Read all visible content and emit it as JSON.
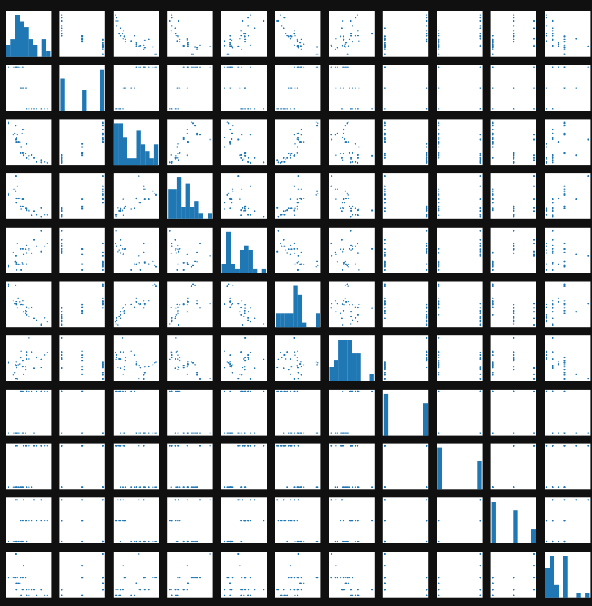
{
  "figure": {
    "background": "#101010",
    "panel_color": "#ffffff",
    "mark_color": "#1f77b4"
  },
  "chart_data": {
    "type": "scatter_matrix",
    "n_vars": 11,
    "diag_type": "histogram",
    "axes_visible": false,
    "variables": [
      {
        "range": [
          10,
          35
        ],
        "values": [
          21,
          21,
          22.8,
          21.4,
          18.7,
          18.1,
          14.3,
          24.4,
          22.8,
          19.2,
          17.8,
          16.4,
          17.3,
          15.2,
          10.4,
          10.4,
          14.7,
          32.4,
          30.4,
          33.9,
          21.5,
          15.5,
          15.2,
          13.3,
          19.2,
          27.3,
          26,
          30.4,
          15.8,
          19.7,
          15,
          21.4
        ]
      },
      {
        "range": [
          4,
          8
        ],
        "values": [
          6,
          6,
          4,
          6,
          8,
          6,
          8,
          4,
          4,
          6,
          6,
          8,
          8,
          8,
          8,
          8,
          8,
          4,
          4,
          4,
          4,
          8,
          8,
          8,
          8,
          4,
          4,
          4,
          8,
          6,
          8,
          4
        ]
      },
      {
        "range": [
          70,
          480
        ],
        "values": [
          160,
          160,
          108,
          258,
          360,
          225,
          360,
          146.7,
          140.8,
          167.6,
          167.6,
          275.8,
          275.8,
          275.8,
          472,
          460,
          440,
          78.7,
          75.7,
          71.1,
          120.1,
          318,
          304,
          350,
          400,
          79,
          120.3,
          95.1,
          351,
          145,
          301,
          121
        ]
      },
      {
        "range": [
          50,
          340
        ],
        "values": [
          110,
          110,
          93,
          110,
          175,
          105,
          245,
          62,
          95,
          123,
          123,
          180,
          180,
          180,
          205,
          215,
          230,
          66,
          52,
          65,
          97,
          150,
          150,
          245,
          175,
          66,
          91,
          113,
          264,
          175,
          335,
          109
        ]
      },
      {
        "range": [
          2.7,
          5.0
        ],
        "values": [
          3.9,
          3.9,
          3.85,
          3.08,
          3.15,
          2.76,
          3.21,
          3.69,
          3.92,
          3.92,
          3.92,
          3.07,
          3.07,
          3.07,
          2.93,
          3,
          3.23,
          4.08,
          4.93,
          4.22,
          3.7,
          2.76,
          3.15,
          3.73,
          3.08,
          4.08,
          4.43,
          3.77,
          4.22,
          3.62,
          3.54,
          4.11
        ]
      },
      {
        "range": [
          1.5,
          5.5
        ],
        "values": [
          2.62,
          2.875,
          2.32,
          3.215,
          3.44,
          3.46,
          3.57,
          3.19,
          3.15,
          3.44,
          3.44,
          4.07,
          3.73,
          3.78,
          5.25,
          5.424,
          5.345,
          2.2,
          1.615,
          1.835,
          2.465,
          3.52,
          3.435,
          3.84,
          3.845,
          1.935,
          2.14,
          1.513,
          3.17,
          2.77,
          3.57,
          2.78
        ]
      },
      {
        "range": [
          14.5,
          23
        ],
        "values": [
          16.46,
          17.02,
          18.61,
          19.44,
          17.02,
          20.22,
          15.84,
          20,
          22.9,
          18.3,
          18.9,
          17.4,
          17.6,
          18,
          17.98,
          17.82,
          17.42,
          19.47,
          18.52,
          19.9,
          20.01,
          16.87,
          17.3,
          15.41,
          17.05,
          18.9,
          16.7,
          16.9,
          14.5,
          15.5,
          14.6,
          18.6
        ]
      },
      {
        "range": [
          0,
          1
        ],
        "values": [
          0,
          0,
          1,
          1,
          0,
          1,
          0,
          1,
          1,
          1,
          1,
          0,
          0,
          0,
          0,
          0,
          0,
          1,
          1,
          1,
          1,
          0,
          0,
          0,
          0,
          1,
          0,
          1,
          0,
          0,
          0,
          1
        ]
      },
      {
        "range": [
          0,
          1
        ],
        "values": [
          1,
          1,
          1,
          0,
          0,
          0,
          0,
          0,
          0,
          0,
          0,
          0,
          0,
          0,
          0,
          0,
          0,
          1,
          1,
          1,
          0,
          0,
          0,
          0,
          0,
          1,
          1,
          1,
          1,
          1,
          1,
          1
        ]
      },
      {
        "range": [
          3,
          5
        ],
        "values": [
          4,
          4,
          4,
          3,
          3,
          3,
          3,
          4,
          4,
          4,
          4,
          3,
          3,
          3,
          3,
          3,
          3,
          4,
          4,
          4,
          3,
          3,
          3,
          3,
          3,
          4,
          5,
          5,
          5,
          5,
          5,
          4
        ]
      },
      {
        "range": [
          1,
          8
        ],
        "values": [
          4,
          4,
          1,
          1,
          2,
          1,
          4,
          2,
          2,
          4,
          4,
          3,
          3,
          3,
          4,
          4,
          4,
          1,
          2,
          1,
          1,
          2,
          2,
          4,
          2,
          1,
          2,
          2,
          4,
          6,
          8,
          2
        ]
      }
    ]
  }
}
